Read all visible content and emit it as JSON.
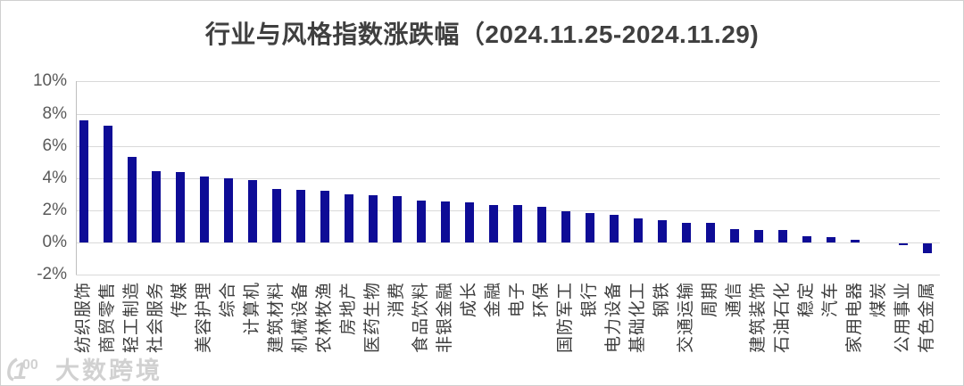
{
  "title": "行业与风格指数涨跌幅（2024.11.25-2024.11.29)",
  "watermark": {
    "logo": "100",
    "text": "大数跨境"
  },
  "colors": {
    "bar": "#0e0c96",
    "gridline": "#d9d9d9",
    "axis_line": "#bfbfbf",
    "title_text": "#3f3f3f",
    "tick_text": "#595959",
    "category_text": "#3d3d3d",
    "border": "#d0d0d0",
    "watermark_text": "#cdcdcd"
  },
  "chart_data": {
    "type": "bar",
    "title": "行业与风格指数涨跌幅（2024.11.25-2024.11.29)",
    "xlabel": "",
    "ylabel": "",
    "ylim": [
      -2,
      10
    ],
    "yticks": [
      10,
      8,
      6,
      4,
      2,
      0,
      -2
    ],
    "ytick_labels": [
      "10%",
      "8%",
      "6%",
      "4%",
      "2%",
      "0%",
      "-2%"
    ],
    "grid": true,
    "legend": false,
    "bar_color": "#0e0c96",
    "value_unit": "%",
    "categories": [
      "纺织服饰",
      "商贸零售",
      "轻工制造",
      "社会服务",
      "传媒",
      "美容护理",
      "综合",
      "计算机",
      "建筑材料",
      "机械设备",
      "农林牧渔",
      "房地产",
      "医药生物",
      "消费",
      "食品饮料",
      "非银金融",
      "成长",
      "金融",
      "电子",
      "环保",
      "国防军工",
      "银行",
      "电力设备",
      "基础化工",
      "钢铁",
      "交通运输",
      "周期",
      "通信",
      "建筑装饰",
      "石油石化",
      "稳定",
      "汽车",
      "家用电器",
      "煤炭",
      "公用事业",
      "有色金属"
    ],
    "values": [
      7.6,
      7.25,
      5.3,
      4.45,
      4.4,
      4.1,
      4.0,
      3.9,
      3.3,
      3.25,
      3.2,
      3.0,
      2.95,
      2.9,
      2.6,
      2.55,
      2.5,
      2.35,
      2.3,
      2.2,
      1.95,
      1.85,
      1.7,
      1.5,
      1.4,
      1.2,
      1.2,
      0.85,
      0.8,
      0.75,
      0.4,
      0.35,
      0.15,
      0.0,
      -0.1,
      -0.6
    ]
  }
}
